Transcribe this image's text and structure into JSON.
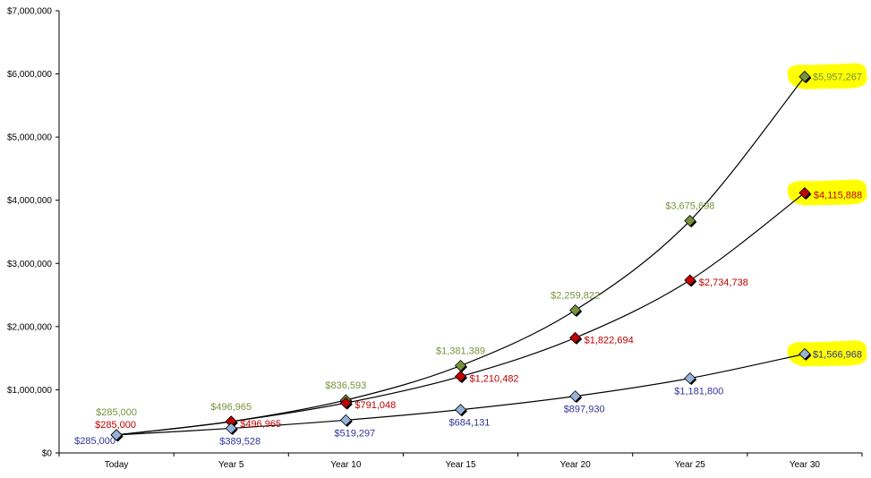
{
  "chart_data": {
    "type": "line",
    "title": "",
    "xlabel": "",
    "ylabel": "",
    "categories": [
      "Today",
      "Year 5",
      "Year 10",
      "Year 15",
      "Year 20",
      "Year 25",
      "Year 30"
    ],
    "ylim": [
      0,
      7000000
    ],
    "yticks": [
      0,
      1000000,
      2000000,
      3000000,
      4000000,
      5000000,
      6000000,
      7000000
    ],
    "ytick_labels": [
      "$0",
      "$1,000,000",
      "$2,000,000",
      "$3,000,000",
      "$4,000,000",
      "$5,000,000",
      "$6,000,000",
      "$7,000,000"
    ],
    "grid": false,
    "legend": "none",
    "series": [
      {
        "color": "#77933c",
        "marker_color": "#76923c",
        "values": [
          285000,
          496965,
          836593,
          1381389,
          2259822,
          3675698,
          5957267
        ],
        "labels": [
          "$285,000",
          "$496,965",
          "$836,593",
          "$1,381,389",
          "$2,259,822",
          "$3,675,698",
          "$5,957,267"
        ],
        "highlight_last": true
      },
      {
        "color": "#c00000",
        "marker_color": "#c00000",
        "values": [
          285000,
          496965,
          791048,
          1210482,
          1822694,
          2734738,
          4115888
        ],
        "labels": [
          "$285,000",
          "$496,965",
          "$791,048",
          "$1,210,482",
          "$1,822,694",
          "$2,734,738",
          "$4,115,888"
        ],
        "highlight_last": true
      },
      {
        "color": "#333399",
        "marker_color": "#95b3d7",
        "values": [
          285000,
          389528,
          519297,
          684131,
          897930,
          1181800,
          1566968
        ],
        "labels": [
          "$285,000",
          "$389,528",
          "$519,297",
          "$684,131",
          "$897,930",
          "$1,181,800",
          "$1,566,968"
        ],
        "highlight_last": true
      }
    ],
    "highlight_color": "#ffff00"
  }
}
